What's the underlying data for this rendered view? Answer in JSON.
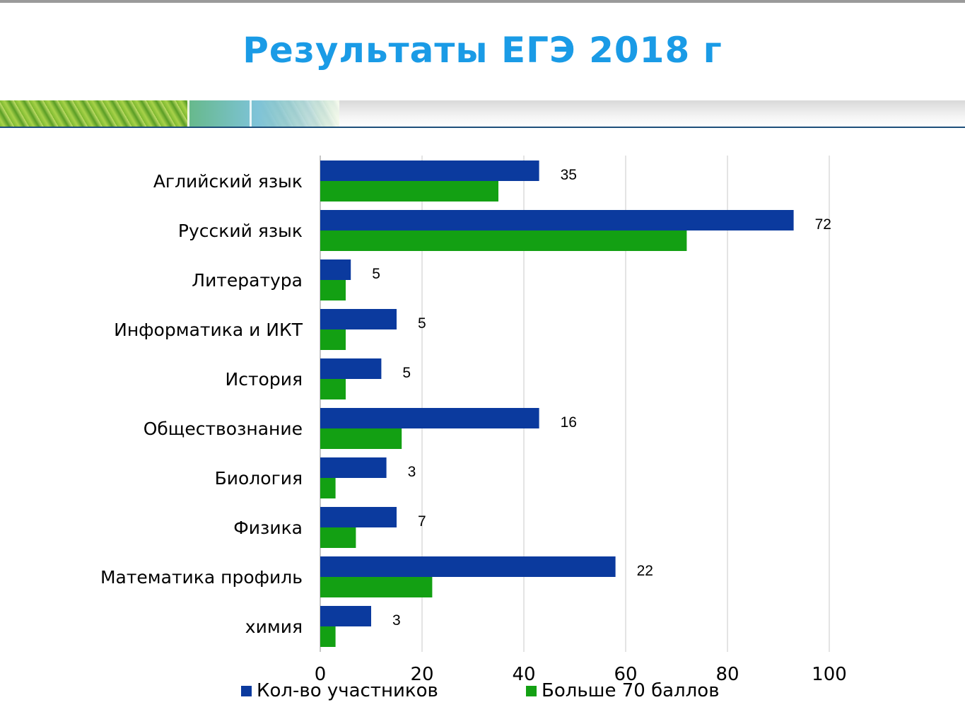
{
  "title": "Результаты ЕГЭ 2018 г",
  "chart_data": {
    "type": "bar",
    "orientation": "horizontal",
    "categories": [
      "Аглийский язык",
      "Русский язык",
      "Литература",
      "Информатика и ИКТ",
      "История",
      "Обществознание",
      "Биология",
      "Физика",
      "Математика профиль",
      "химия"
    ],
    "series": [
      {
        "name": "Кол-во участников",
        "color": "#0b3a9e",
        "values": [
          43,
          93,
          6,
          15,
          12,
          43,
          13,
          15,
          58,
          10
        ]
      },
      {
        "name": "Больше 70 баллов",
        "color": "#13a013",
        "values": [
          35,
          72,
          5,
          5,
          5,
          16,
          3,
          7,
          22,
          3
        ],
        "data_labels": [
          "35",
          "72",
          "5",
          "5",
          "5",
          "16",
          "3",
          "7",
          "22",
          "3"
        ]
      }
    ],
    "xlim": [
      0,
      100
    ],
    "xticks": [
      "0",
      "20",
      "40",
      "60",
      "80",
      "100"
    ],
    "grid": "vertical",
    "legend": "bottom"
  }
}
